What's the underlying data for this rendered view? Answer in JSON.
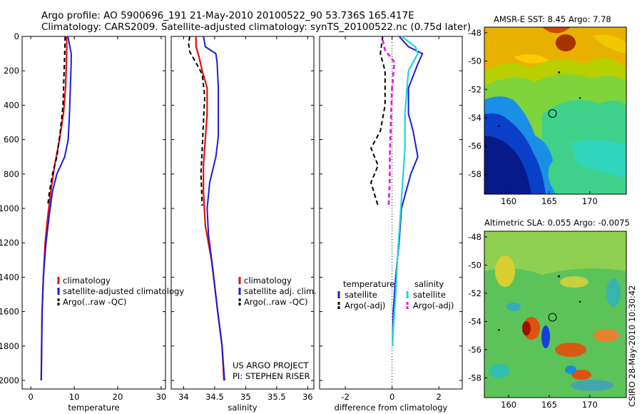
{
  "header": {
    "line1": "Argo profile: AO 5900696_191 21-May-2010 20100522_90 53.736S 165.417E",
    "line2": "Climatology: CARS2009. Satellite-adjusted climatology: synTS_20100522.nc (0.75d later)"
  },
  "credit": "CSIRO 28-May-2010 10:30:42",
  "colors": {
    "climatology": "#dd1111",
    "satellite": "#1a1adc",
    "argo": "#000000",
    "salinity_satellite": "#22d4e4",
    "salinity_argo": "#dd22dd"
  },
  "chart_data": [
    {
      "type": "line",
      "xlabel": "temperature",
      "ylabel": "",
      "xlim": [
        -2,
        31
      ],
      "ylim": [
        2050,
        0
      ],
      "xticks": [
        0,
        10,
        20,
        30
      ],
      "yticks": [
        0,
        200,
        400,
        600,
        800,
        1000,
        1200,
        1400,
        1600,
        1800,
        2000
      ],
      "legend": [
        "climatology",
        "satellite-adjusted climatology",
        "Argo(..raw -QC)"
      ],
      "series": [
        {
          "name": "climatology",
          "style": "solid",
          "color": "#dd1111",
          "width": 2.2,
          "points": [
            [
              8.2,
              0
            ],
            [
              8.3,
              60
            ],
            [
              8.2,
              150
            ],
            [
              8.0,
              300
            ],
            [
              7.5,
              450
            ],
            [
              6.6,
              600
            ],
            [
              5.5,
              750
            ],
            [
              4.6,
              900
            ],
            [
              3.9,
              1050
            ],
            [
              3.3,
              1200
            ],
            [
              2.9,
              1400
            ],
            [
              2.6,
              1600
            ],
            [
              2.5,
              1800
            ],
            [
              2.4,
              2000
            ]
          ]
        },
        {
          "name": "satellite-adjusted climatology",
          "style": "solid",
          "color": "#1a1adc",
          "width": 2,
          "points": [
            [
              8.5,
              0
            ],
            [
              9.0,
              60
            ],
            [
              9.3,
              100
            ],
            [
              9.3,
              150
            ],
            [
              9.1,
              300
            ],
            [
              8.9,
              450
            ],
            [
              8.6,
              600
            ],
            [
              7.8,
              700
            ],
            [
              6.0,
              800
            ],
            [
              5.0,
              900
            ],
            [
              4.2,
              1050
            ],
            [
              3.5,
              1200
            ],
            [
              2.9,
              1400
            ],
            [
              2.6,
              1600
            ],
            [
              2.5,
              1800
            ],
            [
              2.4,
              2000
            ]
          ]
        },
        {
          "name": "Argo(..raw -QC)",
          "style": "dashed",
          "color": "#000000",
          "width": 2,
          "points": [
            [
              7.9,
              0
            ],
            [
              7.8,
              100
            ],
            [
              7.6,
              250
            ],
            [
              7.4,
              400
            ],
            [
              6.8,
              550
            ],
            [
              6.0,
              700
            ],
            [
              5.0,
              800
            ],
            [
              4.3,
              900
            ],
            [
              3.9,
              985
            ]
          ]
        }
      ]
    },
    {
      "type": "line",
      "xlabel": "salinity",
      "ylabel": "",
      "xlim": [
        33.8,
        36.1
      ],
      "ylim": [
        2050,
        0
      ],
      "xticks": [
        34,
        34.5,
        35,
        35.5,
        36
      ],
      "yticks": [
        0,
        200,
        400,
        600,
        800,
        1000,
        1200,
        1400,
        1600,
        1800,
        2000
      ],
      "legend": [
        "climatology",
        "satellite adj. clim.",
        "Argo(..raw -QC)"
      ],
      "annotations": [
        "US ARGO PROJECT",
        "PI: STEPHEN RISER"
      ],
      "series": [
        {
          "name": "climatology",
          "style": "solid",
          "color": "#dd1111",
          "width": 2.2,
          "points": [
            [
              34.2,
              0
            ],
            [
              34.2,
              60
            ],
            [
              34.25,
              120
            ],
            [
              34.3,
              200
            ],
            [
              34.38,
              300
            ],
            [
              34.38,
              450
            ],
            [
              34.35,
              600
            ],
            [
              34.32,
              750
            ],
            [
              34.32,
              900
            ],
            [
              34.35,
              1100
            ],
            [
              34.45,
              1300
            ],
            [
              34.55,
              1600
            ],
            [
              34.62,
              1800
            ],
            [
              34.65,
              2000
            ]
          ]
        },
        {
          "name": "satellite adj. clim.",
          "style": "solid",
          "color": "#1a1adc",
          "width": 2,
          "points": [
            [
              34.32,
              0
            ],
            [
              34.35,
              60
            ],
            [
              34.52,
              100
            ],
            [
              34.54,
              150
            ],
            [
              34.56,
              300
            ],
            [
              34.56,
              450
            ],
            [
              34.56,
              580
            ],
            [
              34.52,
              700
            ],
            [
              34.42,
              850
            ],
            [
              34.38,
              1000
            ],
            [
              34.4,
              1150
            ],
            [
              34.47,
              1350
            ],
            [
              34.55,
              1600
            ],
            [
              34.62,
              1800
            ],
            [
              34.66,
              2000
            ]
          ]
        },
        {
          "name": "Argo(..raw -QC)",
          "style": "dashed",
          "color": "#000000",
          "width": 2,
          "points": [
            [
              34.1,
              0
            ],
            [
              34.08,
              40
            ],
            [
              34.1,
              90
            ],
            [
              34.18,
              140
            ],
            [
              34.3,
              220
            ],
            [
              34.34,
              350
            ],
            [
              34.32,
              500
            ],
            [
              34.3,
              650
            ],
            [
              34.28,
              800
            ],
            [
              34.3,
              985
            ]
          ]
        }
      ]
    },
    {
      "type": "line",
      "xlabel": "difference from climatology",
      "ylabel": "",
      "xlim": [
        -3.1,
        3.0
      ],
      "ylim": [
        2050,
        0
      ],
      "xticks": [
        -2,
        0,
        2
      ],
      "yticks": [
        0,
        200,
        400,
        600,
        800,
        1000,
        1200,
        1400,
        1600,
        1800,
        2000
      ],
      "legend": [
        "temperature",
        "satellite",
        "Argo(-adj)",
        "salinity",
        "satellite",
        "Argo(-adj)"
      ],
      "series": [
        {
          "name": "temperature satellite",
          "style": "solid",
          "color": "#1a1adc",
          "width": 2,
          "points": [
            [
              0.3,
              0
            ],
            [
              0.7,
              60
            ],
            [
              1.3,
              100
            ],
            [
              1.1,
              160
            ],
            [
              0.7,
              300
            ],
            [
              0.7,
              450
            ],
            [
              0.9,
              550
            ],
            [
              1.1,
              700
            ],
            [
              0.8,
              800
            ],
            [
              0.6,
              900
            ],
            [
              0.4,
              1000
            ],
            [
              0.3,
              1200
            ],
            [
              0.15,
              1400
            ],
            [
              0.05,
              1600
            ],
            [
              0.02,
              1800
            ]
          ]
        },
        {
          "name": "temperature Argo(-adj)",
          "style": "dashed",
          "color": "#000000",
          "width": 2,
          "points": [
            [
              -0.4,
              0
            ],
            [
              -0.5,
              100
            ],
            [
              -0.3,
              200
            ],
            [
              -0.3,
              400
            ],
            [
              -0.5,
              550
            ],
            [
              -0.9,
              650
            ],
            [
              -0.6,
              750
            ],
            [
              -0.9,
              850
            ],
            [
              -0.6,
              985
            ]
          ]
        },
        {
          "name": "salinity satellite",
          "style": "solid",
          "color": "#22d4e4",
          "width": 2.2,
          "points": [
            [
              0.4,
              0
            ],
            [
              1.0,
              60
            ],
            [
              1.1,
              100
            ],
            [
              0.7,
              200
            ],
            [
              0.55,
              450
            ],
            [
              0.55,
              650
            ],
            [
              0.45,
              850
            ],
            [
              0.35,
              1050
            ],
            [
              0.25,
              1250
            ],
            [
              0.15,
              1500
            ],
            [
              0.05,
              1700
            ],
            [
              0.02,
              1800
            ]
          ]
        },
        {
          "name": "salinity Argo(-adj)",
          "style": "dashed",
          "color": "#dd22dd",
          "width": 2.8,
          "points": [
            [
              -0.4,
              20
            ],
            [
              -0.3,
              80
            ],
            [
              0.1,
              150
            ],
            [
              0.0,
              300
            ],
            [
              -0.05,
              500
            ],
            [
              -0.1,
              700
            ],
            [
              -0.1,
              850
            ],
            [
              -0.15,
              985
            ]
          ]
        }
      ]
    },
    {
      "type": "heatmap",
      "title": "AMSR-E SST: 8.45 Argo: 7.78",
      "xlim": [
        157,
        174.5
      ],
      "ylim": [
        -59.4,
        -47.6
      ],
      "xticks": [
        160,
        165,
        170
      ],
      "yticks": [
        -48,
        -50,
        -52,
        -54,
        -56,
        -58
      ],
      "float_position": [
        165.4,
        -53.7
      ]
    },
    {
      "type": "heatmap",
      "title": "Altimetric SLA: 0.055 Argo: -0.0075",
      "xlim": [
        157,
        174.5
      ],
      "ylim": [
        -59.4,
        -47.6
      ],
      "xticks": [
        160,
        165,
        170
      ],
      "yticks": [
        -48,
        -50,
        -52,
        -54,
        -56,
        -58
      ],
      "float_position": [
        165.4,
        -53.7
      ]
    }
  ]
}
